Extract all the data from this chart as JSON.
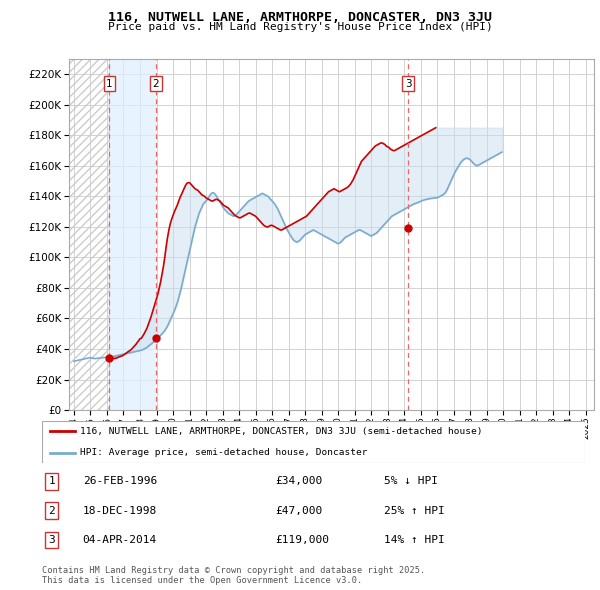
{
  "title": "116, NUTWELL LANE, ARMTHORPE, DONCASTER, DN3 3JU",
  "subtitle": "Price paid vs. HM Land Registry's House Price Index (HPI)",
  "background_color": "#ffffff",
  "grid_color": "#cccccc",
  "ylim": [
    0,
    230000
  ],
  "yticks": [
    0,
    20000,
    40000,
    60000,
    80000,
    100000,
    120000,
    140000,
    160000,
    180000,
    200000,
    220000
  ],
  "ytick_labels": [
    "£0",
    "£20K",
    "£40K",
    "£60K",
    "£80K",
    "£100K",
    "£120K",
    "£140K",
    "£160K",
    "£180K",
    "£200K",
    "£220K"
  ],
  "xlim_start": 1993.7,
  "xlim_end": 2025.5,
  "transactions": [
    {
      "num": 1,
      "year": 1996.15,
      "price": 34000,
      "label": "26-FEB-1996",
      "amount": "£34,000",
      "change": "5% ↓ HPI"
    },
    {
      "num": 2,
      "year": 1998.96,
      "price": 47000,
      "label": "18-DEC-1998",
      "amount": "£47,000",
      "change": "25% ↑ HPI"
    },
    {
      "num": 3,
      "year": 2014.25,
      "price": 119000,
      "label": "04-APR-2014",
      "amount": "£119,000",
      "change": "14% ↑ HPI"
    }
  ],
  "red_line_color": "#cc0000",
  "blue_line_color": "#7aabcf",
  "fill_alpha_color": "#ddeeff",
  "hatch_color": "#bbbbbb",
  "dashed_line_color": "#ee6666",
  "legend_line1": "116, NUTWELL LANE, ARMTHORPE, DONCASTER, DN3 3JU (semi-detached house)",
  "legend_line2": "HPI: Average price, semi-detached house, Doncaster",
  "footnote": "Contains HM Land Registry data © Crown copyright and database right 2025.\nThis data is licensed under the Open Government Licence v3.0.",
  "hpi_monthly": {
    "start_year": 1994,
    "start_month": 1,
    "values": [
      32000,
      32200,
      32400,
      32600,
      32800,
      33000,
      33200,
      33400,
      33600,
      33800,
      34000,
      34200,
      34300,
      34100,
      33900,
      33700,
      33800,
      33900,
      34000,
      34100,
      34200,
      34300,
      34400,
      34500,
      34600,
      34700,
      34800,
      34900,
      35000,
      35200,
      35400,
      35600,
      35800,
      36000,
      36200,
      36400,
      36600,
      36800,
      37000,
      37200,
      37400,
      37600,
      37800,
      38000,
      38200,
      38400,
      38600,
      38800,
      39000,
      39200,
      39600,
      40000,
      40500,
      41000,
      41800,
      42500,
      43200,
      44000,
      44800,
      45500,
      46200,
      47000,
      48000,
      49000,
      50000,
      51000,
      52000,
      53500,
      55000,
      57000,
      59000,
      61000,
      63000,
      65000,
      67500,
      70000,
      73000,
      76500,
      80000,
      84000,
      88000,
      92000,
      96000,
      100000,
      104000,
      108000,
      112000,
      116000,
      120000,
      123000,
      126000,
      129000,
      131000,
      133000,
      135000,
      136000,
      137000,
      138000,
      139500,
      141000,
      142000,
      142500,
      142000,
      141000,
      139500,
      138000,
      136500,
      135000,
      133500,
      132000,
      131000,
      130000,
      129000,
      128500,
      128000,
      127500,
      127000,
      127500,
      128000,
      129000,
      130000,
      131000,
      132000,
      133000,
      134000,
      135000,
      136000,
      137000,
      137500,
      138000,
      138500,
      139000,
      139500,
      140000,
      140500,
      141000,
      141500,
      142000,
      141500,
      141000,
      140500,
      140000,
      139000,
      138000,
      137000,
      136000,
      135000,
      133500,
      132000,
      130000,
      128000,
      126000,
      124000,
      122000,
      120000,
      118000,
      116500,
      115000,
      113500,
      112000,
      111000,
      110500,
      110000,
      110500,
      111000,
      112000,
      113000,
      114000,
      115000,
      115500,
      116000,
      116500,
      117000,
      117500,
      118000,
      117500,
      117000,
      116500,
      116000,
      115500,
      115000,
      114500,
      114000,
      113500,
      113000,
      112500,
      112000,
      111500,
      111000,
      110500,
      110000,
      109500,
      109000,
      109500,
      110000,
      111000,
      112000,
      113000,
      113500,
      114000,
      114500,
      115000,
      115500,
      116000,
      116500,
      117000,
      117500,
      118000,
      118000,
      117500,
      117000,
      116500,
      116000,
      115500,
      115000,
      114500,
      114000,
      114500,
      115000,
      115500,
      116000,
      117000,
      118000,
      119000,
      120000,
      121000,
      122000,
      123000,
      124000,
      125000,
      126000,
      127000,
      127500,
      128000,
      128500,
      129000,
      129500,
      130000,
      130500,
      131000,
      131500,
      132000,
      132500,
      133000,
      133500,
      134000,
      134500,
      135000,
      135300,
      135600,
      136000,
      136400,
      136800,
      137200,
      137500,
      137800,
      138000,
      138200,
      138400,
      138600,
      138700,
      138800,
      138900,
      139000,
      139200,
      139500,
      140000,
      140500,
      141000,
      141500,
      142500,
      144000,
      146000,
      148000,
      150000,
      152000,
      154000,
      156000,
      157500,
      159000,
      160500,
      162000,
      163000,
      164000,
      164500,
      165000,
      165000,
      164500,
      164000,
      163000,
      162000,
      161000,
      160500,
      160000,
      160500,
      161000,
      161500,
      162000,
      162500,
      163000,
      163500,
      164000,
      164500,
      165000,
      165500,
      166000,
      166500,
      167000,
      167500,
      168000,
      168500,
      169000
    ]
  },
  "red_line_monthly": {
    "start_year": 1994,
    "start_month": 1,
    "values": [
      null,
      null,
      null,
      null,
      null,
      null,
      null,
      null,
      null,
      null,
      null,
      null,
      null,
      null,
      null,
      null,
      null,
      null,
      null,
      null,
      null,
      null,
      null,
      null,
      34000,
      34200,
      34300,
      34100,
      33900,
      33700,
      33900,
      34100,
      34500,
      34900,
      35200,
      35500,
      36000,
      36700,
      37300,
      38000,
      38600,
      39200,
      40000,
      41000,
      42000,
      43000,
      44200,
      45500,
      46800,
      47000,
      48500,
      50000,
      51800,
      53500,
      56000,
      58500,
      61000,
      64000,
      67000,
      70000,
      73000,
      76000,
      80000,
      84000,
      89000,
      94000,
      100000,
      107000,
      113000,
      118000,
      122000,
      125000,
      127500,
      130000,
      132000,
      134000,
      136500,
      139000,
      141000,
      143000,
      145000,
      147000,
      148500,
      149000,
      149000,
      148000,
      147000,
      146000,
      145000,
      144500,
      144000,
      143000,
      142000,
      141000,
      140500,
      140000,
      139000,
      138500,
      138000,
      137500,
      137000,
      137000,
      137500,
      138000,
      138000,
      137500,
      137000,
      136000,
      135000,
      134000,
      133500,
      133000,
      132500,
      131500,
      130500,
      129500,
      128500,
      127500,
      127000,
      126500,
      126000,
      126000,
      126500,
      127000,
      127500,
      128000,
      128500,
      129000,
      129000,
      128500,
      128000,
      127500,
      127000,
      126000,
      125000,
      124000,
      123000,
      122000,
      121000,
      120500,
      120000,
      120000,
      120500,
      121000,
      121000,
      120500,
      120000,
      119500,
      119000,
      118500,
      118000,
      118000,
      118500,
      119000,
      119500,
      120000,
      120500,
      121000,
      121500,
      122000,
      122500,
      123000,
      123500,
      124000,
      124500,
      125000,
      125500,
      126000,
      126500,
      127000,
      128000,
      129000,
      130000,
      131000,
      132000,
      133000,
      134000,
      135000,
      136000,
      137000,
      138000,
      139000,
      140000,
      141000,
      142000,
      143000,
      143500,
      144000,
      144500,
      145000,
      144500,
      144000,
      143500,
      143000,
      143500,
      144000,
      144500,
      145000,
      145500,
      146000,
      147000,
      148000,
      149500,
      151000,
      153000,
      155000,
      157000,
      159000,
      161000,
      163000,
      164000,
      165000,
      166000,
      167000,
      168000,
      169000,
      170000,
      171000,
      172000,
      173000,
      173500,
      174000,
      174500,
      175000,
      175000,
      174500,
      174000,
      173000,
      172500,
      172000,
      171000,
      170500,
      170000,
      170000,
      170500,
      171000,
      171500,
      172000,
      172500,
      173000,
      173500,
      174000,
      174500,
      175000,
      175500,
      176000,
      176500,
      177000,
      177500,
      178000,
      178500,
      179000,
      179500,
      180000,
      180500,
      181000,
      181500,
      182000,
      182500,
      183000,
      183500,
      184000,
      184500,
      185000
    ]
  }
}
